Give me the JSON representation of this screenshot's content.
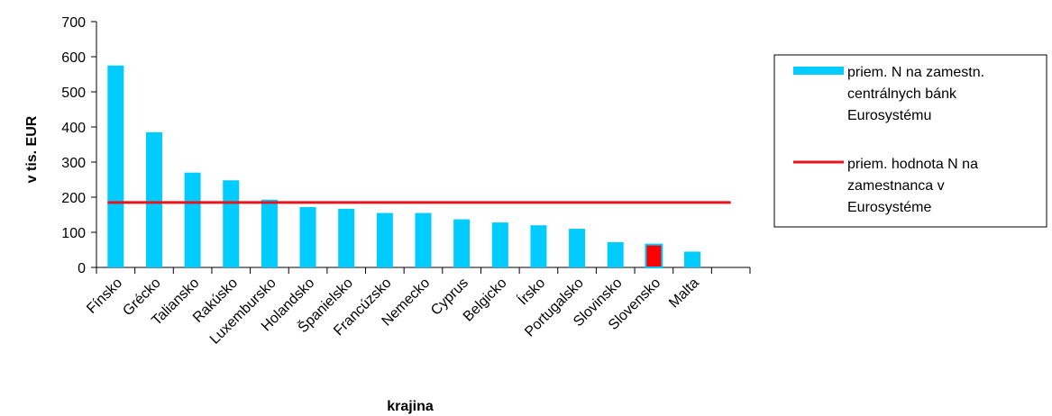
{
  "chart_data": {
    "type": "bar",
    "title": "",
    "xlabel": "krajina",
    "ylabel": "v tis. EUR",
    "ylim": [
      0,
      700
    ],
    "yticks": [
      0,
      100,
      200,
      300,
      400,
      500,
      600,
      700
    ],
    "grid": false,
    "legend_position": "right",
    "categories": [
      "Fínsko",
      "Grécko",
      "Taliansko",
      "Rakúsko",
      "Luxembursko",
      "Holandsko",
      "Španielsko",
      "Francúzsko",
      "Nemecko",
      "Cyprus",
      "Belgicko",
      "Írsko",
      "Portugalsko",
      "Slovinsko",
      "Slovensko",
      "Malta"
    ],
    "series": [
      {
        "name": "priem. N na zamestn. centrálnych bánk Eurosystému",
        "legend_lines": [
          "priem. N na zamestn.",
          "centrálnych bánk",
          "Eurosystému"
        ],
        "values": [
          575,
          385,
          270,
          248,
          193,
          172,
          167,
          155,
          155,
          137,
          128,
          120,
          110,
          72,
          65,
          45
        ],
        "color": "#00ccff",
        "highlight": {
          "category": "Slovensko",
          "color": "#ff0000"
        }
      },
      {
        "name": "priem. hodnota N na zamestnanca v Eurosystéme",
        "legend_lines": [
          "priem. hodnota N na",
          "zamestnanca v",
          "Eurosystéme"
        ],
        "type": "line",
        "value": 185,
        "color": "#e8141c"
      }
    ]
  }
}
